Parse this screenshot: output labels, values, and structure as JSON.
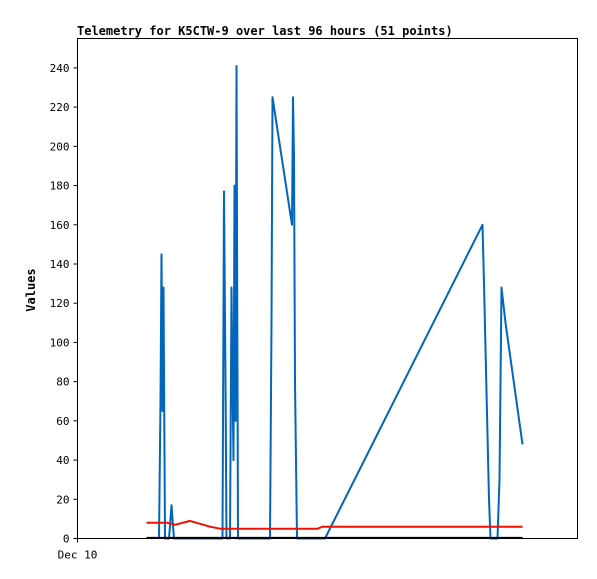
{
  "chart_data": {
    "type": "line",
    "title": "Telemetry for K5CTW-9 over last 96 hours (51 points)",
    "xlabel": "",
    "ylabel": "Values",
    "x_tick_labels": [
      {
        "x": 0,
        "label": "Dec 10"
      }
    ],
    "xlim": [
      0,
      100
    ],
    "ylim": [
      0,
      255
    ],
    "y_ticks": [
      0,
      20,
      40,
      60,
      80,
      100,
      120,
      140,
      160,
      180,
      200,
      220,
      240
    ],
    "grid": false,
    "legend": "none",
    "series": [
      {
        "color": "#0066bb",
        "points": [
          [
            16.3,
            0
          ],
          [
            16.6,
            70
          ],
          [
            16.8,
            145
          ],
          [
            17.0,
            65
          ],
          [
            17.2,
            128
          ],
          [
            17.5,
            0
          ],
          [
            18.3,
            0
          ],
          [
            18.6,
            10
          ],
          [
            18.8,
            17
          ],
          [
            19.0,
            10
          ],
          [
            19.3,
            0
          ],
          [
            29.0,
            0
          ],
          [
            29.3,
            177
          ],
          [
            29.6,
            80
          ],
          [
            29.8,
            0
          ],
          [
            30.5,
            0
          ],
          [
            30.8,
            128
          ],
          [
            31.0,
            80
          ],
          [
            31.2,
            40
          ],
          [
            31.4,
            180
          ],
          [
            31.6,
            60
          ],
          [
            31.8,
            241
          ],
          [
            32.1,
            0
          ],
          [
            38.5,
            0
          ],
          [
            38.8,
            110
          ],
          [
            39.0,
            225
          ],
          [
            42.9,
            160
          ],
          [
            43.1,
            225
          ],
          [
            43.3,
            195
          ],
          [
            43.5,
            80
          ],
          [
            43.9,
            0
          ],
          [
            49.5,
            0
          ],
          [
            81.0,
            160
          ],
          [
            81.3,
            130
          ],
          [
            82.3,
            20
          ],
          [
            82.6,
            0
          ],
          [
            84.0,
            0
          ],
          [
            84.4,
            30
          ],
          [
            84.8,
            128
          ],
          [
            85.6,
            110
          ],
          [
            89.0,
            48
          ]
        ]
      },
      {
        "color": "#ee1100",
        "points": [
          [
            13.8,
            8
          ],
          [
            16.0,
            8
          ],
          [
            18.0,
            8
          ],
          [
            19.5,
            7
          ],
          [
            22.5,
            9
          ],
          [
            26.5,
            6
          ],
          [
            28.5,
            5
          ],
          [
            39.0,
            5
          ],
          [
            48.0,
            5
          ],
          [
            49.0,
            6
          ],
          [
            89.0,
            6
          ]
        ]
      },
      {
        "color": "#000000",
        "points": [
          [
            13.8,
            0.3
          ],
          [
            89.0,
            0.3
          ]
        ]
      }
    ]
  }
}
